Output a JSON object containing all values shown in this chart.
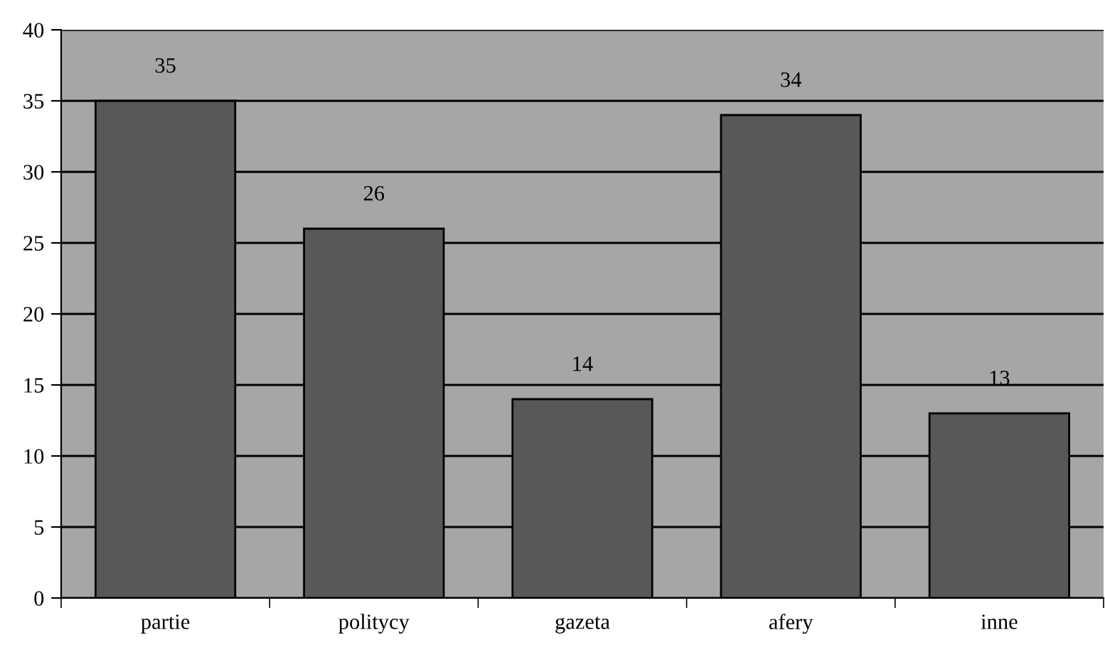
{
  "chart_data": {
    "type": "bar",
    "categories": [
      "partie",
      "politycy",
      "gazeta",
      "afery",
      "inne"
    ],
    "values": [
      35,
      26,
      14,
      34,
      13
    ],
    "color": "#58585a",
    "ylim": [
      0,
      40
    ],
    "yticks": [
      0,
      5,
      10,
      15,
      20,
      25,
      30,
      35,
      40
    ],
    "grid": "y",
    "data_labels": true,
    "legend": false
  }
}
